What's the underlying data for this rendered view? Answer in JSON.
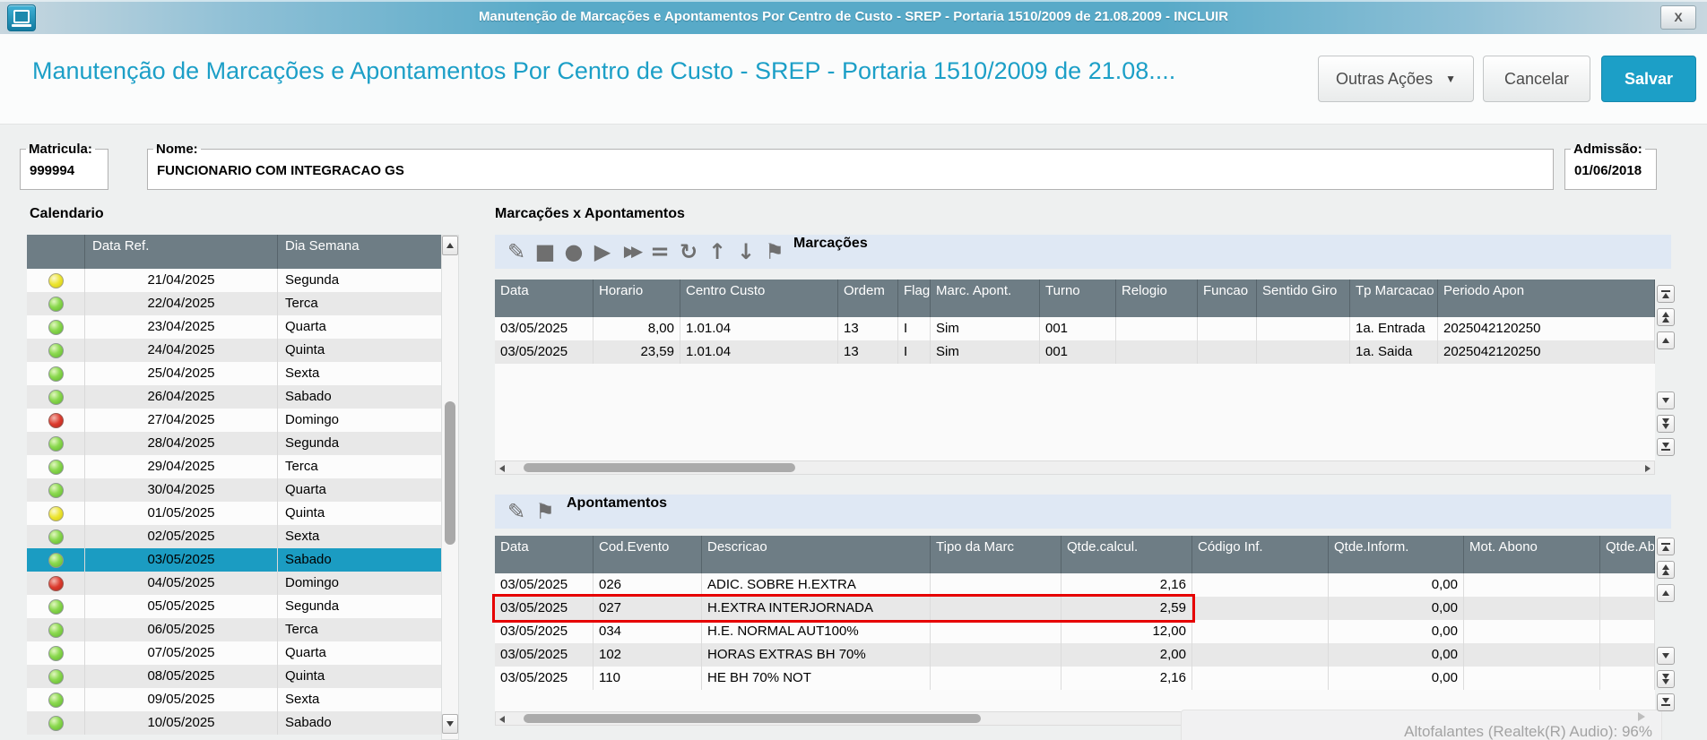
{
  "window": {
    "title": "Manutenção de Marcações e Apontamentos Por Centro de Custo - SREP - Portaria 1510/2009 de 21.08.2009 - INCLUIR",
    "close_label": "X"
  },
  "header": {
    "title": "Manutenção de Marcações e Apontamentos Por Centro de Custo - SREP - Portaria 1510/2009 de 21.08....",
    "buttons": {
      "other_actions": "Outras Ações",
      "cancel": "Cancelar",
      "save": "Salvar"
    }
  },
  "employee": {
    "matricula_label": "Matricula:",
    "matricula": "999994",
    "nome_label": "Nome:",
    "nome": "FUNCIONARIO COM INTEGRACAO GS",
    "admissao_label": "Admissão:",
    "admissao": "01/06/2018"
  },
  "calendar": {
    "title": "Calendario",
    "columns": [
      "Data Ref.",
      "Dia Semana"
    ],
    "rows": [
      {
        "date": "21/04/2025",
        "day": "Segunda",
        "status": "yellow",
        "selected": false
      },
      {
        "date": "22/04/2025",
        "day": "Terca",
        "status": "green",
        "selected": false
      },
      {
        "date": "23/04/2025",
        "day": "Quarta",
        "status": "green",
        "selected": false
      },
      {
        "date": "24/04/2025",
        "day": "Quinta",
        "status": "green",
        "selected": false
      },
      {
        "date": "25/04/2025",
        "day": "Sexta",
        "status": "green",
        "selected": false
      },
      {
        "date": "26/04/2025",
        "day": "Sabado",
        "status": "green",
        "selected": false
      },
      {
        "date": "27/04/2025",
        "day": "Domingo",
        "status": "red",
        "selected": false
      },
      {
        "date": "28/04/2025",
        "day": "Segunda",
        "status": "green",
        "selected": false
      },
      {
        "date": "29/04/2025",
        "day": "Terca",
        "status": "green",
        "selected": false
      },
      {
        "date": "30/04/2025",
        "day": "Quarta",
        "status": "green",
        "selected": false
      },
      {
        "date": "01/05/2025",
        "day": "Quinta",
        "status": "yellow",
        "selected": false
      },
      {
        "date": "02/05/2025",
        "day": "Sexta",
        "status": "green",
        "selected": false
      },
      {
        "date": "03/05/2025",
        "day": "Sabado",
        "status": "green",
        "selected": true
      },
      {
        "date": "04/05/2025",
        "day": "Domingo",
        "status": "red",
        "selected": false
      },
      {
        "date": "05/05/2025",
        "day": "Segunda",
        "status": "green",
        "selected": false
      },
      {
        "date": "06/05/2025",
        "day": "Terca",
        "status": "green",
        "selected": false
      },
      {
        "date": "07/05/2025",
        "day": "Quarta",
        "status": "green",
        "selected": false
      },
      {
        "date": "08/05/2025",
        "day": "Quinta",
        "status": "green",
        "selected": false
      },
      {
        "date": "09/05/2025",
        "day": "Sexta",
        "status": "green",
        "selected": false
      },
      {
        "date": "10/05/2025",
        "day": "Sabado",
        "status": "green",
        "selected": false
      }
    ]
  },
  "panel": {
    "title": "Marcações x Apontamentos"
  },
  "marcacoes": {
    "label": "Marcações",
    "toolbar_icons": [
      {
        "name": "edit",
        "glyph": "✎"
      },
      {
        "name": "box",
        "glyph": "■"
      },
      {
        "name": "circle",
        "glyph": "●"
      },
      {
        "name": "play",
        "glyph": "▶"
      },
      {
        "name": "fast-forward",
        "glyph": "▶▶"
      },
      {
        "name": "equals",
        "glyph": "="
      },
      {
        "name": "rotate",
        "glyph": "↻"
      },
      {
        "name": "arrow-up",
        "glyph": "↑"
      },
      {
        "name": "arrow-down",
        "glyph": "↓"
      },
      {
        "name": "flag",
        "glyph": "⚑"
      }
    ],
    "columns": [
      "Data",
      "Horario",
      "Centro Custo",
      "Ordem",
      "Flag",
      "Marc. Apont.",
      "Turno",
      "Relogio",
      "Funcao",
      "Sentido Giro",
      "Tp Marcacao",
      "Periodo Apon"
    ],
    "rows": [
      [
        "03/05/2025",
        "8,00",
        "1.01.04",
        "13",
        "I",
        "Sim",
        "001",
        "",
        "",
        "",
        "1a. Entrada",
        "2025042120250"
      ],
      [
        "03/05/2025",
        "23,59",
        "1.01.04",
        "13",
        "I",
        "Sim",
        "001",
        "",
        "",
        "",
        "1a. Saida",
        "2025042120250"
      ]
    ]
  },
  "apontamentos": {
    "label": "Apontamentos",
    "toolbar_icons": [
      {
        "name": "edit",
        "glyph": "✎"
      },
      {
        "name": "flag",
        "glyph": "⚑"
      }
    ],
    "columns": [
      "Data",
      "Cod.Evento",
      "Descricao",
      "Tipo da Marc",
      "Qtde.calcul.",
      "Código Inf.",
      "Qtde.Inform.",
      "Mot. Abono",
      "Qtde.Ab"
    ],
    "rows": [
      [
        "03/05/2025",
        "026",
        "ADIC. SOBRE H.EXTRA",
        "",
        "2,16",
        "",
        "0,00",
        "",
        ""
      ],
      [
        "03/05/2025",
        "027",
        "H.EXTRA INTERJORNADA",
        "",
        "2,59",
        "",
        "0,00",
        "",
        ""
      ],
      [
        "03/05/2025",
        "034",
        "H.E. NORMAL AUT100%",
        "",
        "12,00",
        "",
        "0,00",
        "",
        ""
      ],
      [
        "03/05/2025",
        "102",
        "HORAS EXTRAS BH 70%",
        "",
        "2,00",
        "",
        "0,00",
        "",
        ""
      ],
      [
        "03/05/2025",
        "110",
        "HE BH 70% NOT",
        "",
        "2,16",
        "",
        "0,00",
        "",
        ""
      ]
    ],
    "highlighted_row_index": 1
  },
  "toast": {
    "text": "Altofalantes (Realtek(R) Audio): 96%"
  },
  "colors": {
    "accent": "#1c9fc7",
    "selected_row": "#1b9cc2",
    "header_slate": "#6e7d85",
    "highlight_border": "#e60000",
    "status_green": "#7cd03f",
    "status_yellow": "#e8e23c",
    "status_red": "#d33a2f"
  }
}
